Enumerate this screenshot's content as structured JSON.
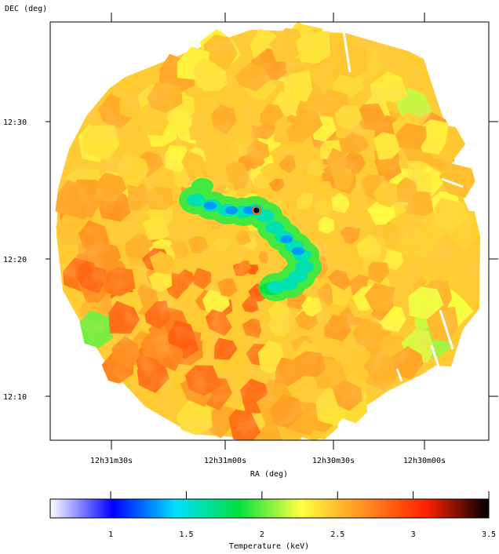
{
  "chart_data": {
    "type": "heatmap",
    "description_labels": {
      "ylabel": "DEC (deg)",
      "xlabel": "RA (deg)"
    },
    "dec_ticks": [
      {
        "label": "12:30",
        "value": 30
      },
      {
        "label": "12:20",
        "value": 20
      },
      {
        "label": "12:10",
        "value": 10
      }
    ],
    "ra_ticks": [
      {
        "label": "12h31m30s",
        "value": 0
      },
      {
        "label": "12h31m00s",
        "value": 1
      },
      {
        "label": "12h30m30s",
        "value": 2
      },
      {
        "label": "12h30m00s",
        "value": 3
      }
    ],
    "colorbar": {
      "label": "Temperature (keV)",
      "range": [
        0.6,
        3.5
      ],
      "ticks": [
        {
          "label": "1",
          "value": 1.0
        },
        {
          "label": "1.5",
          "value": 1.5
        },
        {
          "label": "2",
          "value": 2.0
        },
        {
          "label": "2.5",
          "value": 2.5
        },
        {
          "label": "3",
          "value": 3.0
        },
        {
          "label": "3.5",
          "value": 3.5
        }
      ],
      "colors": [
        "#ffffff",
        "#0000ff",
        "#00e0ff",
        "#00e040",
        "#ffff40",
        "#ff9020",
        "#ff2000",
        "#000000"
      ]
    },
    "temperature_features": {
      "background": 2.45,
      "warm_regions": 2.75,
      "cool_filament_core": 1.3,
      "cool_filament_edge": 1.95,
      "hot_point": 3.4,
      "cool_patches": 2.0
    }
  }
}
